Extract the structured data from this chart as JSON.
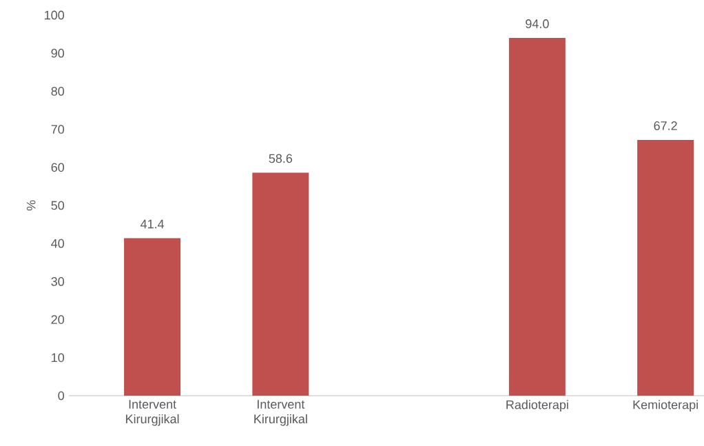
{
  "chart_data": {
    "type": "bar",
    "ylabel": "%",
    "categories": [
      "Intervent Kirurgjikal",
      "Intervent Kirurgjikal",
      null,
      "Radioterapi",
      "Kemioterapi"
    ],
    "values": [
      41.4,
      58.6,
      null,
      94.0,
      67.2
    ],
    "value_labels": [
      "41.4",
      "58.6",
      null,
      "94.0",
      "67.2"
    ],
    "color": "#c0504d",
    "ylim": [
      0,
      100
    ],
    "yticks": [
      0,
      10,
      20,
      30,
      40,
      50,
      60,
      70,
      80,
      90,
      100
    ],
    "grid": false
  }
}
